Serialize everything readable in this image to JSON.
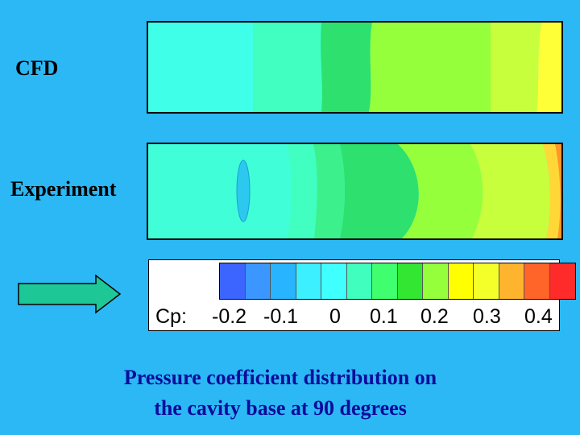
{
  "panels": {
    "cfd_label": "CFD",
    "experiment_label": "Experiment"
  },
  "legend": {
    "prefix": "Cp:",
    "ticks": [
      "-0.2",
      "-0.1",
      "0",
      "0.1",
      "0.2",
      "0.3",
      "0.4"
    ],
    "colors": [
      "#3c64ff",
      "#3c96ff",
      "#28b4ff",
      "#3cf0ff",
      "#40ffff",
      "#40ffbe",
      "#40ff6e",
      "#32e632",
      "#96ff3c",
      "#ffff00",
      "#f4ff2a",
      "#ffb42e",
      "#ff6428",
      "#ff2a2a"
    ]
  },
  "caption": {
    "line1": "Pressure coefficient distribution on",
    "line2": "the cavity base at 90 degrees"
  },
  "colors": {
    "background": "#2cb8f4",
    "caption": "#0c0c9c",
    "arrow_fill": "#1ec896"
  }
}
